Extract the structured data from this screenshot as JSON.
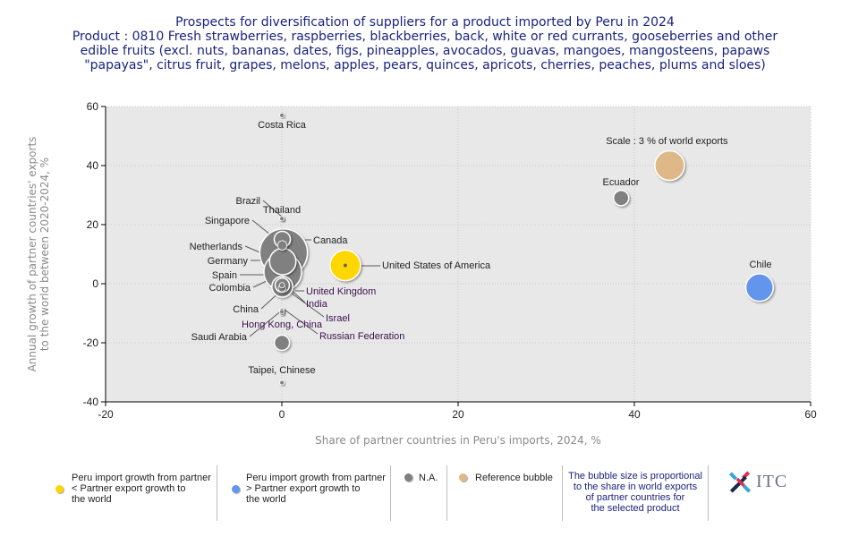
{
  "title": {
    "lines": [
      "Prospects for diversification of suppliers for a product imported by Peru in 2024",
      "Product : 0810 Fresh strawberries, raspberries, blackberries, back, white or red currants, gooseberries and other",
      "edible fruits (excl. nuts, bananas, dates, figs, pineapples, avocados, guavas, mangoes, mangosteens, papaws",
      "\"papayas\", citrus fruit, grapes, melons, apples, pears, quinces, apricots, cherries, peaches, plums and sloes)"
    ]
  },
  "chart_data": {
    "type": "scatter",
    "subtype": "bubble",
    "title": "Prospects for diversification of suppliers for a product imported by Peru in 2024",
    "xlabel": "Share of partner countries in Peru's imports, 2024, %",
    "ylabel_lines": [
      "Annual growth of partner countries' exports",
      "to the world between 2020-2024, %"
    ],
    "xlim": [
      -20,
      60
    ],
    "ylim": [
      -40,
      60
    ],
    "xticks": [
      -20,
      0,
      20,
      40,
      60
    ],
    "yticks": [
      -40,
      -20,
      0,
      20,
      40,
      60
    ],
    "grid": true,
    "colors": {
      "lower": "#ffd700",
      "higher": "#6495ed",
      "na": "#808080",
      "reference": "#deb887",
      "plot_bg": "#e8e8e8"
    },
    "reference": {
      "label": "Scale : 3 % of world exports",
      "x": 44,
      "y": 40,
      "size_pct": 3
    },
    "points": [
      {
        "name": "Chile",
        "x": 54.2,
        "y": -1.3,
        "size_pct": 2.6,
        "category": "higher",
        "label_dir": "above"
      },
      {
        "name": "United States of America",
        "x": 7.2,
        "y": 6.2,
        "size_pct": 3.2,
        "category": "lower",
        "label_dir": "right-leader"
      },
      {
        "name": "Ecuador",
        "x": 38.5,
        "y": 29,
        "size_pct": 0.8,
        "category": "na",
        "label_dir": "above"
      },
      {
        "name": "Canada",
        "x": 0.2,
        "y": 10.5,
        "size_pct": 7.8,
        "category": "na",
        "label_dir": "right-leader"
      },
      {
        "name": "Spain",
        "x": 0.1,
        "y": 4,
        "size_pct": 4.9,
        "category": "na",
        "label_dir": "left-leader"
      },
      {
        "name": "Germany",
        "x": 0.1,
        "y": 7.5,
        "size_pct": 2.4,
        "category": "na",
        "label_dir": "left-leader"
      },
      {
        "name": "Colombia",
        "x": 0.05,
        "y": -1,
        "size_pct": 1.5,
        "category": "na",
        "label_dir": "left-leader"
      },
      {
        "name": "Singapore",
        "x": 0.05,
        "y": 15,
        "size_pct": 0.9,
        "category": "na",
        "label_dir": "left-leader"
      },
      {
        "name": "Netherlands",
        "x": 0.05,
        "y": 13,
        "size_pct": 0.3,
        "category": "na",
        "label_dir": "left-leader"
      },
      {
        "name": "United Kingdom",
        "x": 0.05,
        "y": -0.5,
        "size_pct": 0.7,
        "category": "na",
        "label_dir": "right-leader"
      },
      {
        "name": "India",
        "x": 0.02,
        "y": -1.5,
        "size_pct": 0.2,
        "category": "na",
        "label_dir": "right-leader"
      },
      {
        "name": "China",
        "x": 0.02,
        "y": -0.5,
        "size_pct": 0.1,
        "category": "na",
        "label_dir": "left-leader"
      },
      {
        "name": "Israel",
        "x": 0.01,
        "y": -9,
        "size_pct": 0.05,
        "category": "na",
        "label_dir": "right-leader"
      },
      {
        "name": "Hong Kong, China",
        "x": 0.01,
        "y": -9,
        "size_pct": 0.05,
        "category": "na",
        "label_dir": "below"
      },
      {
        "name": "Russian Federation",
        "x": 0.01,
        "y": -10,
        "size_pct": 0.05,
        "category": "na",
        "label_dir": "right-leader"
      },
      {
        "name": "Saudi Arabia",
        "x": 0.01,
        "y": -9.5,
        "size_pct": 0.05,
        "category": "na",
        "label_dir": "left-leader"
      },
      {
        "name": "Brazil",
        "x": 0.01,
        "y": 22,
        "size_pct": 0.05,
        "category": "na",
        "label_dir": "left-leader"
      },
      {
        "name": "Thailand",
        "x": 0.01,
        "y": 22,
        "size_pct": 0.05,
        "category": "na",
        "label_dir": "above"
      },
      {
        "name": "Costa Rica",
        "x": 0.01,
        "y": 57,
        "size_pct": 0.05,
        "category": "na",
        "label_dir": "below"
      },
      {
        "name": "Taipei, Chinese",
        "x": 0.01,
        "y": -33.5,
        "size_pct": 0.05,
        "category": "na",
        "label_dir": "above"
      },
      {
        "name": "",
        "x": 0.01,
        "y": -20,
        "size_pct": 0.8,
        "category": "na",
        "label_dir": "none"
      }
    ]
  },
  "legend": {
    "items": [
      {
        "label_lines": [
          "Peru import growth from partner",
          "< Partner export growth to",
          "the world"
        ],
        "color_key": "lower"
      },
      {
        "label_lines": [
          "Peru import growth from partner",
          "> Partner export growth to",
          "the world"
        ],
        "color_key": "higher"
      },
      {
        "label_lines": [
          "N.A."
        ],
        "color_key": "na"
      },
      {
        "label_lines": [
          "Reference bubble"
        ],
        "color_key": "reference"
      }
    ],
    "note_lines": [
      "The bubble size is proportional",
      "to the share in world exports",
      "of partner countries for",
      "the selected product"
    ],
    "logo_text": "ITC",
    "logo_icon": "itc-cross-logo-icon"
  }
}
